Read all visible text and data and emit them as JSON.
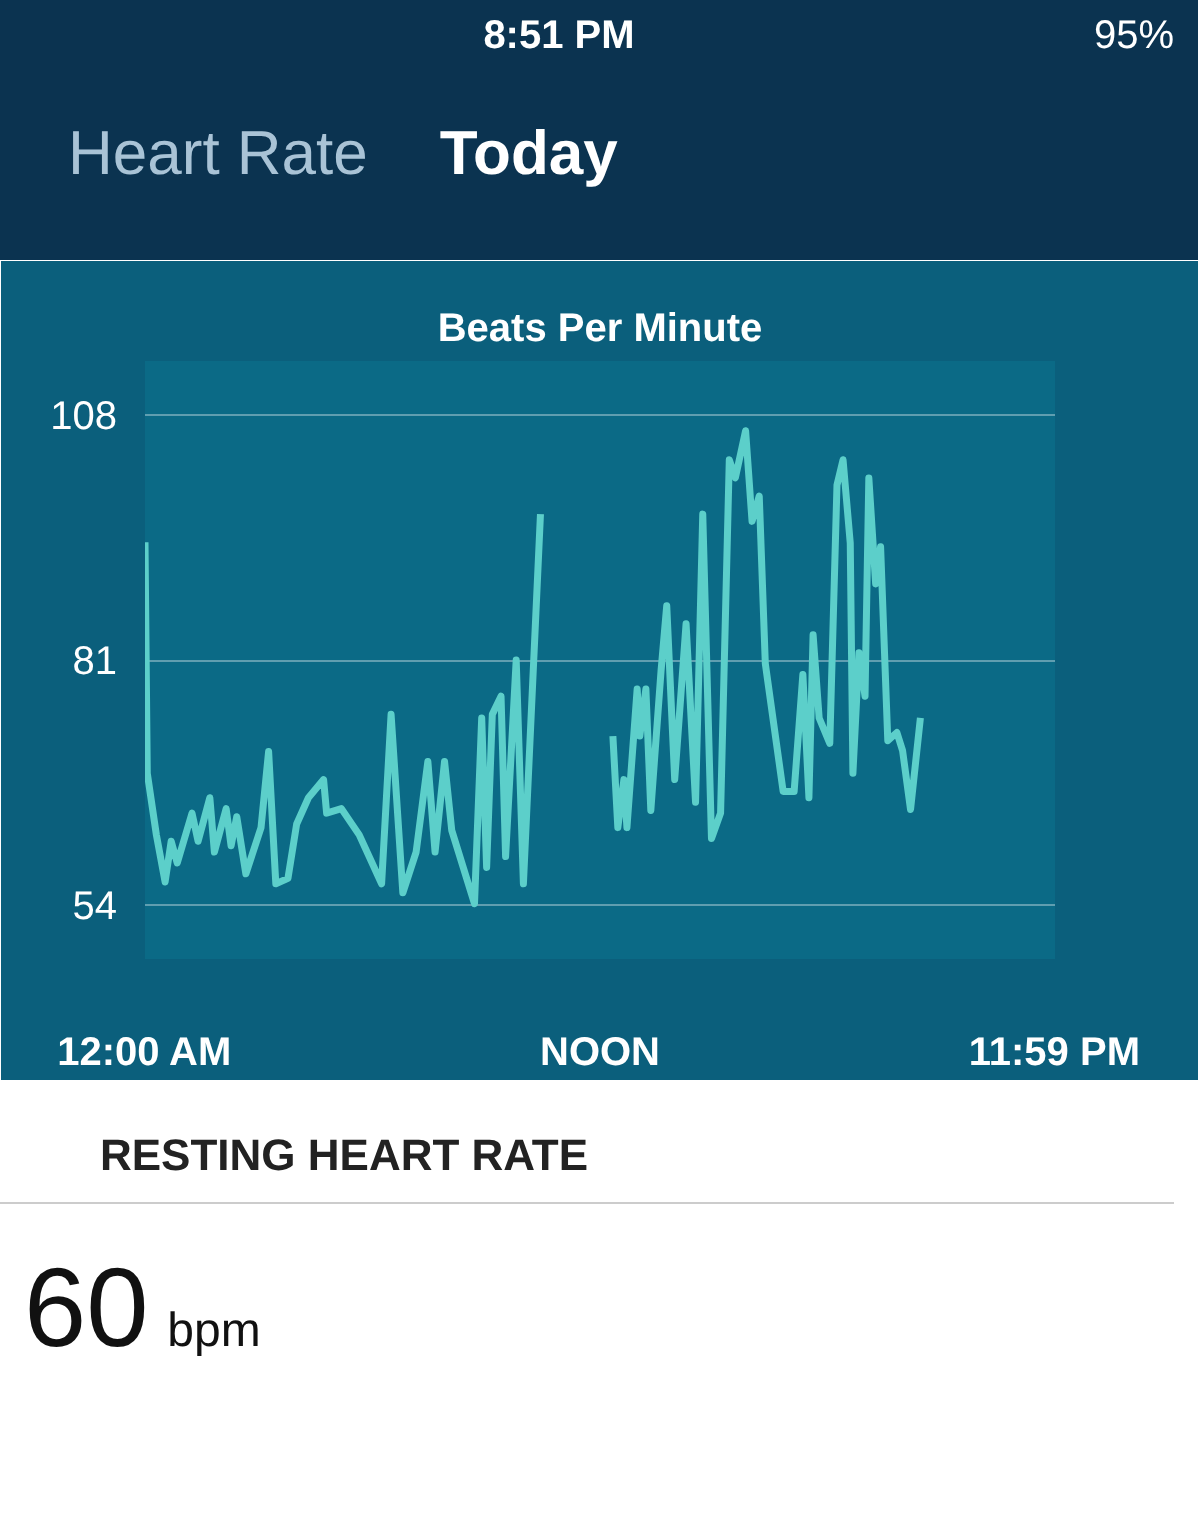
{
  "chart_data": {
    "type": "line",
    "title": "Today",
    "ylabel": "Beats Per Minute",
    "annotations": [
      "8:51 PM",
      "95%",
      "Heart Rate",
      "RESTING HEART RATE",
      "60 bpm"
    ],
    "x": [
      0,
      0.06,
      0.3,
      0.53,
      0.69,
      0.85,
      1.24,
      1.4,
      1.71,
      1.83,
      2.14,
      2.27,
      2.42,
      2.66,
      3.06,
      3.26,
      3.45,
      3.77,
      4.0,
      4.31,
      4.71,
      4.79,
      5.18,
      5.65,
      6.24,
      6.49,
      6.8,
      7.15,
      7.46,
      7.65,
      7.9,
      8.09,
      8.69,
      8.88,
      9.01,
      9.16,
      9.39,
      9.51,
      9.79,
      9.98,
      10.43,
      11.4,
      12.34,
      12.47,
      12.63,
      12.71,
      12.98,
      13.05,
      13.21,
      13.34,
      13.61,
      13.76,
      13.97,
      14.27,
      14.52,
      14.71,
      14.94,
      15.18,
      15.41,
      15.57,
      15.84,
      16.01,
      16.2,
      16.36,
      16.83,
      17.12,
      17.35,
      17.51,
      17.62,
      17.78,
      18.06,
      18.25,
      18.41,
      18.6,
      18.67,
      18.83,
      18.99,
      19.09,
      19.27,
      19.4,
      19.59,
      19.83,
      19.98,
      20.19,
      20.45
    ],
    "series": [
      {
        "color": "#5ccfca",
        "values": [
          94,
          68.5,
          61.7,
          56.5,
          61,
          58.6,
          64.1,
          61,
          65.8,
          59.8,
          64.6,
          60.5,
          63.7,
          57.4,
          62.5,
          70.9,
          56.3,
          56.9,
          62.9,
          65.8,
          67.8,
          64.1,
          64.6,
          61.7,
          56.3,
          75,
          55.3,
          59.8,
          69.8,
          59.8,
          69.8,
          62.2,
          54.1,
          74.6,
          58.1,
          75,
          77,
          59.3,
          81,
          56.3,
          97.1,
          null,
          72.6,
          62.5,
          67.8,
          62.5,
          77.8,
          72.6,
          77.8,
          64.4,
          79.8,
          87,
          67.8,
          85,
          65.3,
          97.1,
          61.3,
          64.1,
          103.1,
          101.1,
          106.3,
          96.3,
          99.1,
          80.6,
          66.5,
          66.5,
          79.4,
          65.8,
          83.8,
          74.6,
          71.8,
          100.3,
          103.1,
          93.9,
          68.5,
          81.8,
          77,
          101.1,
          89.4,
          93.5,
          72.1,
          73,
          71,
          64.5,
          74.6
        ]
      }
    ],
    "xlim": [
      0,
      24
    ],
    "ylim": [
      48,
      114
    ],
    "xticks": [
      {
        "value": 0,
        "label": "12:00 AM"
      },
      {
        "value": 12,
        "label": "NOON"
      },
      {
        "value": 23.9833,
        "label": "11:59 PM"
      }
    ],
    "yticks": [
      54,
      81,
      108
    ],
    "grid": "y",
    "line_style": "solid",
    "marker": "none"
  }
}
